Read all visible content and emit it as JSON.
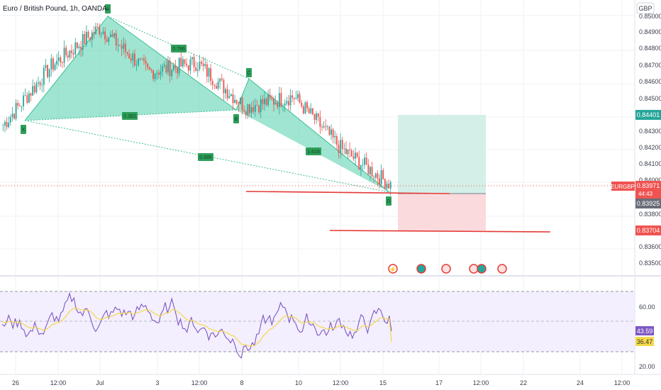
{
  "header": {
    "title": "Euro / British Pound, 1h, OANDA"
  },
  "price_axis": {
    "currency": "GBP",
    "ticks": [
      "0.85000",
      "0.84900",
      "0.84800",
      "0.84700",
      "0.84600",
      "0.84500",
      "0.84300",
      "0.84200",
      "0.84100",
      "0.84000",
      "0.83800",
      "0.83600",
      "0.83500"
    ]
  },
  "badges": {
    "target": "0.84401",
    "symbol": "EURGBP",
    "last_price": "0.83971",
    "countdown": "44:43",
    "entry": "0.83925",
    "stop": "0.83704"
  },
  "rsi": {
    "ticks": [
      "60.00",
      "40.00",
      "20.00"
    ],
    "value": "43.59",
    "ma_value": "36.47"
  },
  "time_axis": {
    "labels": [
      "26",
      "12:00",
      "Jul",
      "3",
      "12:00",
      "8",
      "10",
      "12:00",
      "15",
      "17",
      "12:00",
      "22",
      "24",
      "12:00"
    ]
  },
  "pattern": {
    "point_labels": [
      "X",
      "A",
      "B",
      "C",
      "D"
    ],
    "ratio_labels": [
      "0.382",
      "0.786",
      "1.618",
      "0.886"
    ]
  },
  "colors": {
    "up": "#26a69a",
    "down": "#ef5350",
    "pattern_fill": "#5fd3b2",
    "profit_zone": "#d4efe8",
    "loss_zone": "#fadadd",
    "rsi_line": "#7e57c2",
    "rsi_ma": "#f5d84a",
    "rsi_band": "#f3efff",
    "marker_red": "#e53935"
  },
  "chart_data": {
    "type": "line",
    "title": "Euro / British Pound, 1h, OANDA",
    "xlabel": "",
    "ylabel": "GBP",
    "ylim": [
      0.8345,
      0.8508
    ],
    "x": [
      "26",
      "12:00",
      "Jul",
      "3",
      "12:00",
      "8",
      "10",
      "12:00",
      "15"
    ],
    "series": [
      {
        "values": [
          0.8436,
          0.8475,
          0.85,
          0.8471,
          0.8477,
          0.8448,
          0.8455,
          0.842,
          0.8397
        ]
      }
    ],
    "harmonic_points": [
      {
        "label": "X",
        "price": 0.8437
      },
      {
        "label": "A",
        "price": 0.85
      },
      {
        "label": "B",
        "price": 0.8442
      },
      {
        "label": "C",
        "price": 0.8462
      },
      {
        "label": "D",
        "price": 0.8391
      }
    ],
    "position": {
      "target": 0.84401,
      "entry": 0.83925,
      "stop": 0.83704
    },
    "rsi": {
      "ylim": [
        10,
        74
      ],
      "upper": 70,
      "lower": 30,
      "last": 43.59,
      "ma_last": 36.47
    }
  }
}
